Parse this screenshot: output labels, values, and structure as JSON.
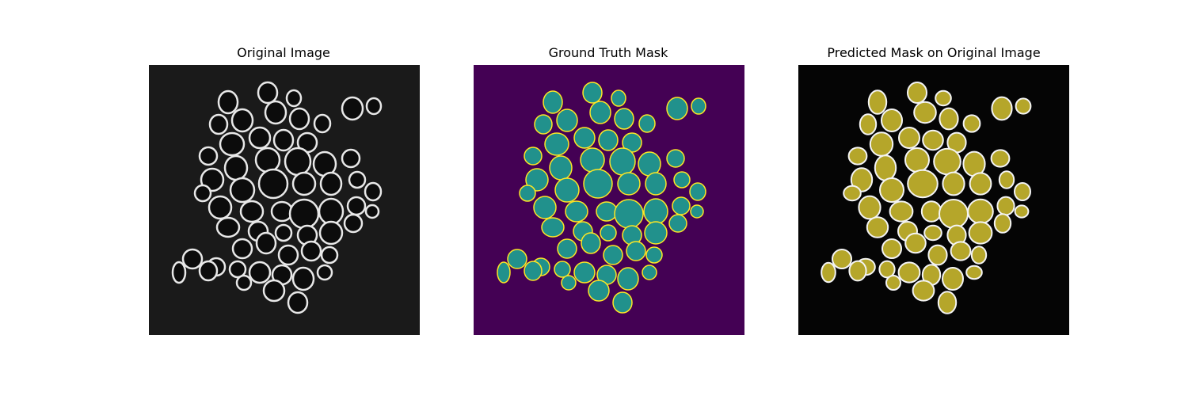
{
  "panels": {
    "original": {
      "title": "Original Image",
      "background": "#1a1a1a",
      "cell_fill": "#0c0c0c",
      "cell_edge": "#e8e8e8"
    },
    "ground_truth": {
      "title": "Ground Truth Mask",
      "background": "#440154",
      "cell_fill": "#21918c",
      "cell_edge": "#fde725"
    },
    "predicted": {
      "title": "Predicted Mask on Original Image",
      "background": "#050505",
      "cell_fill": "#b5a62a",
      "cell_edge": "#f4f4f4"
    }
  }
}
